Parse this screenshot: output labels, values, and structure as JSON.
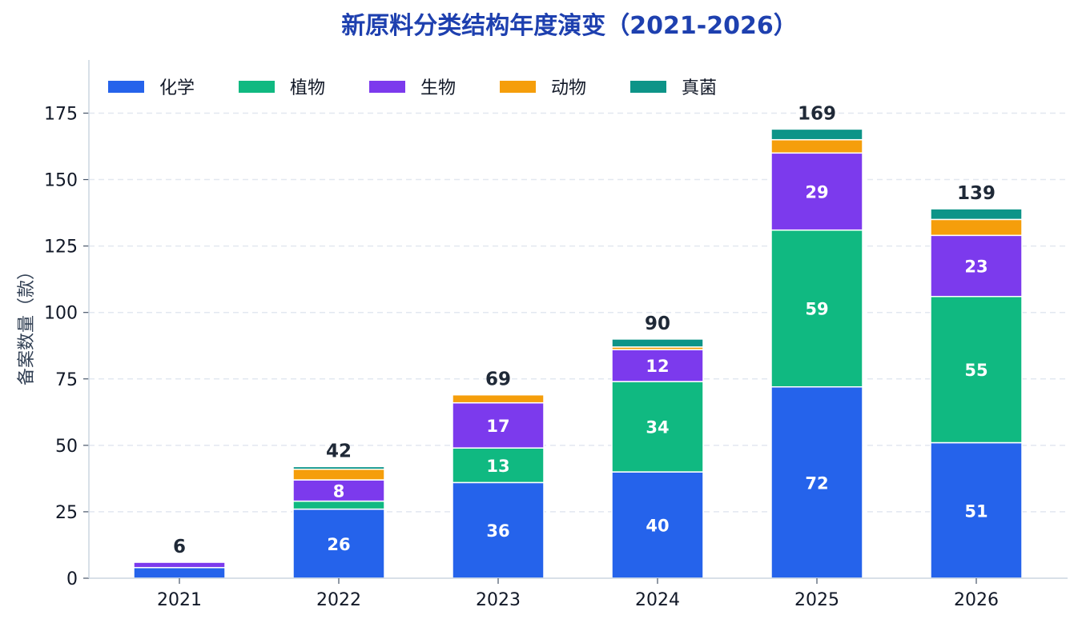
{
  "chart_data": {
    "type": "bar",
    "stacked": true,
    "title": "新原料分类结构年度演变（2021-2026）",
    "xlabel": "",
    "ylabel": "备案数量（款）",
    "ylim": [
      0,
      195
    ],
    "yticks": [
      0,
      25,
      50,
      75,
      100,
      125,
      150,
      175
    ],
    "grid": true,
    "legend_position": "top-left",
    "categories": [
      "2021",
      "2022",
      "2023",
      "2024",
      "2025",
      "2026"
    ],
    "series": [
      {
        "name": "化学",
        "color": "#2563eb",
        "values": [
          4,
          26,
          36,
          40,
          72,
          51
        ]
      },
      {
        "name": "植物",
        "color": "#10b981",
        "values": [
          0,
          3,
          13,
          34,
          59,
          55
        ]
      },
      {
        "name": "生物",
        "color": "#7c3aed",
        "values": [
          2,
          8,
          17,
          12,
          29,
          23
        ]
      },
      {
        "name": "动物",
        "color": "#f59e0b",
        "values": [
          0,
          4,
          3,
          1,
          5,
          6
        ]
      },
      {
        "name": "真菌",
        "color": "#0d9488",
        "values": [
          0,
          1,
          0,
          3,
          4,
          4
        ]
      }
    ],
    "segment_label_min": 8,
    "totals": [
      6,
      42,
      69,
      90,
      169,
      139
    ]
  }
}
